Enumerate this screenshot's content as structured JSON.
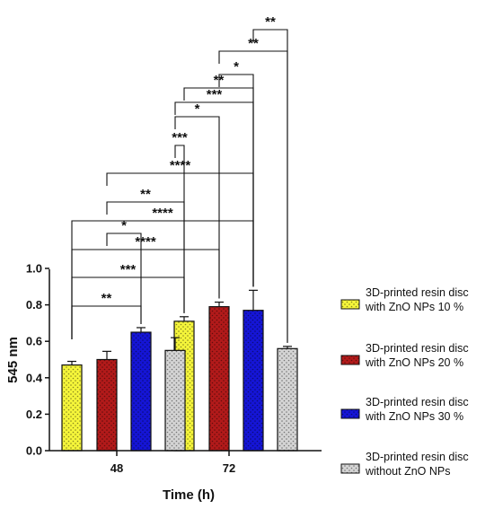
{
  "chart_data": {
    "type": "bar",
    "categories": [
      "48",
      "72"
    ],
    "xlabel": "Time (h)",
    "ylabel": "545 nm",
    "ylim": [
      0,
      1.0
    ],
    "yticks": [
      "0.0",
      "0.2",
      "0.4",
      "0.6",
      "0.8",
      "1.0"
    ],
    "series": [
      {
        "name": "3D-printed resin disc with ZnO NPs 10 %",
        "legend_lines": [
          "3D-printed resin disc",
          "with ZnO NPs 10 %"
        ],
        "color": "#f5f53a",
        "values": [
          0.47,
          0.71
        ],
        "errors": [
          0.02,
          0.025
        ]
      },
      {
        "name": "3D-printed resin disc with ZnO NPs 20 %",
        "legend_lines": [
          "3D-printed resin disc",
          "with ZnO NPs 20 %"
        ],
        "color": "#b21a1a",
        "values": [
          0.5,
          0.79
        ],
        "errors": [
          0.045,
          0.025
        ]
      },
      {
        "name": "3D-printed resin disc with ZnO NPs 30 %",
        "legend_lines": [
          "3D-printed resin disc",
          "with ZnO NPs 30 %"
        ],
        "color": "#1515d6",
        "values": [
          0.65,
          0.77
        ],
        "errors": [
          0.025,
          0.11
        ]
      },
      {
        "name": "3D-printed resin disc without ZnO NPs",
        "legend_lines": [
          "3D-printed resin disc",
          "without ZnO NPs"
        ],
        "color": "#d4d4d4",
        "values": [
          0.55,
          0.56
        ],
        "errors": [
          0.07,
          0.012
        ]
      }
    ],
    "significance": [
      {
        "from": [
          0,
          0
        ],
        "to": [
          0,
          2
        ],
        "label": "**"
      },
      {
        "from": [
          0,
          0
        ],
        "to": [
          1,
          0
        ],
        "label": "***"
      },
      {
        "from": [
          0,
          0
        ],
        "to": [
          1,
          1
        ],
        "label": "****"
      },
      {
        "from": [
          0,
          0
        ],
        "to": [
          1,
          2
        ],
        "label": "****"
      },
      {
        "from": [
          0,
          1
        ],
        "to": [
          0,
          2
        ],
        "label": "*"
      },
      {
        "from": [
          0,
          1
        ],
        "to": [
          1,
          0
        ],
        "label": "**"
      },
      {
        "from": [
          0,
          1
        ],
        "to": [
          1,
          2
        ],
        "label": "****"
      },
      {
        "from": [
          0,
          3
        ],
        "to": [
          1,
          0
        ],
        "label": "***"
      },
      {
        "from": [
          0,
          3
        ],
        "to": [
          1,
          1
        ],
        "label": "*"
      },
      {
        "from": [
          0,
          3
        ],
        "to": [
          1,
          2
        ],
        "label": "***"
      },
      {
        "from": [
          1,
          0
        ],
        "to": [
          1,
          2
        ],
        "label": "**"
      },
      {
        "from": [
          1,
          1
        ],
        "to": [
          1,
          2
        ],
        "label": "*"
      },
      {
        "from": [
          1,
          1
        ],
        "to": [
          1,
          3
        ],
        "label": "**"
      },
      {
        "from": [
          1,
          2
        ],
        "to": [
          1,
          3
        ],
        "label": "**"
      }
    ]
  }
}
